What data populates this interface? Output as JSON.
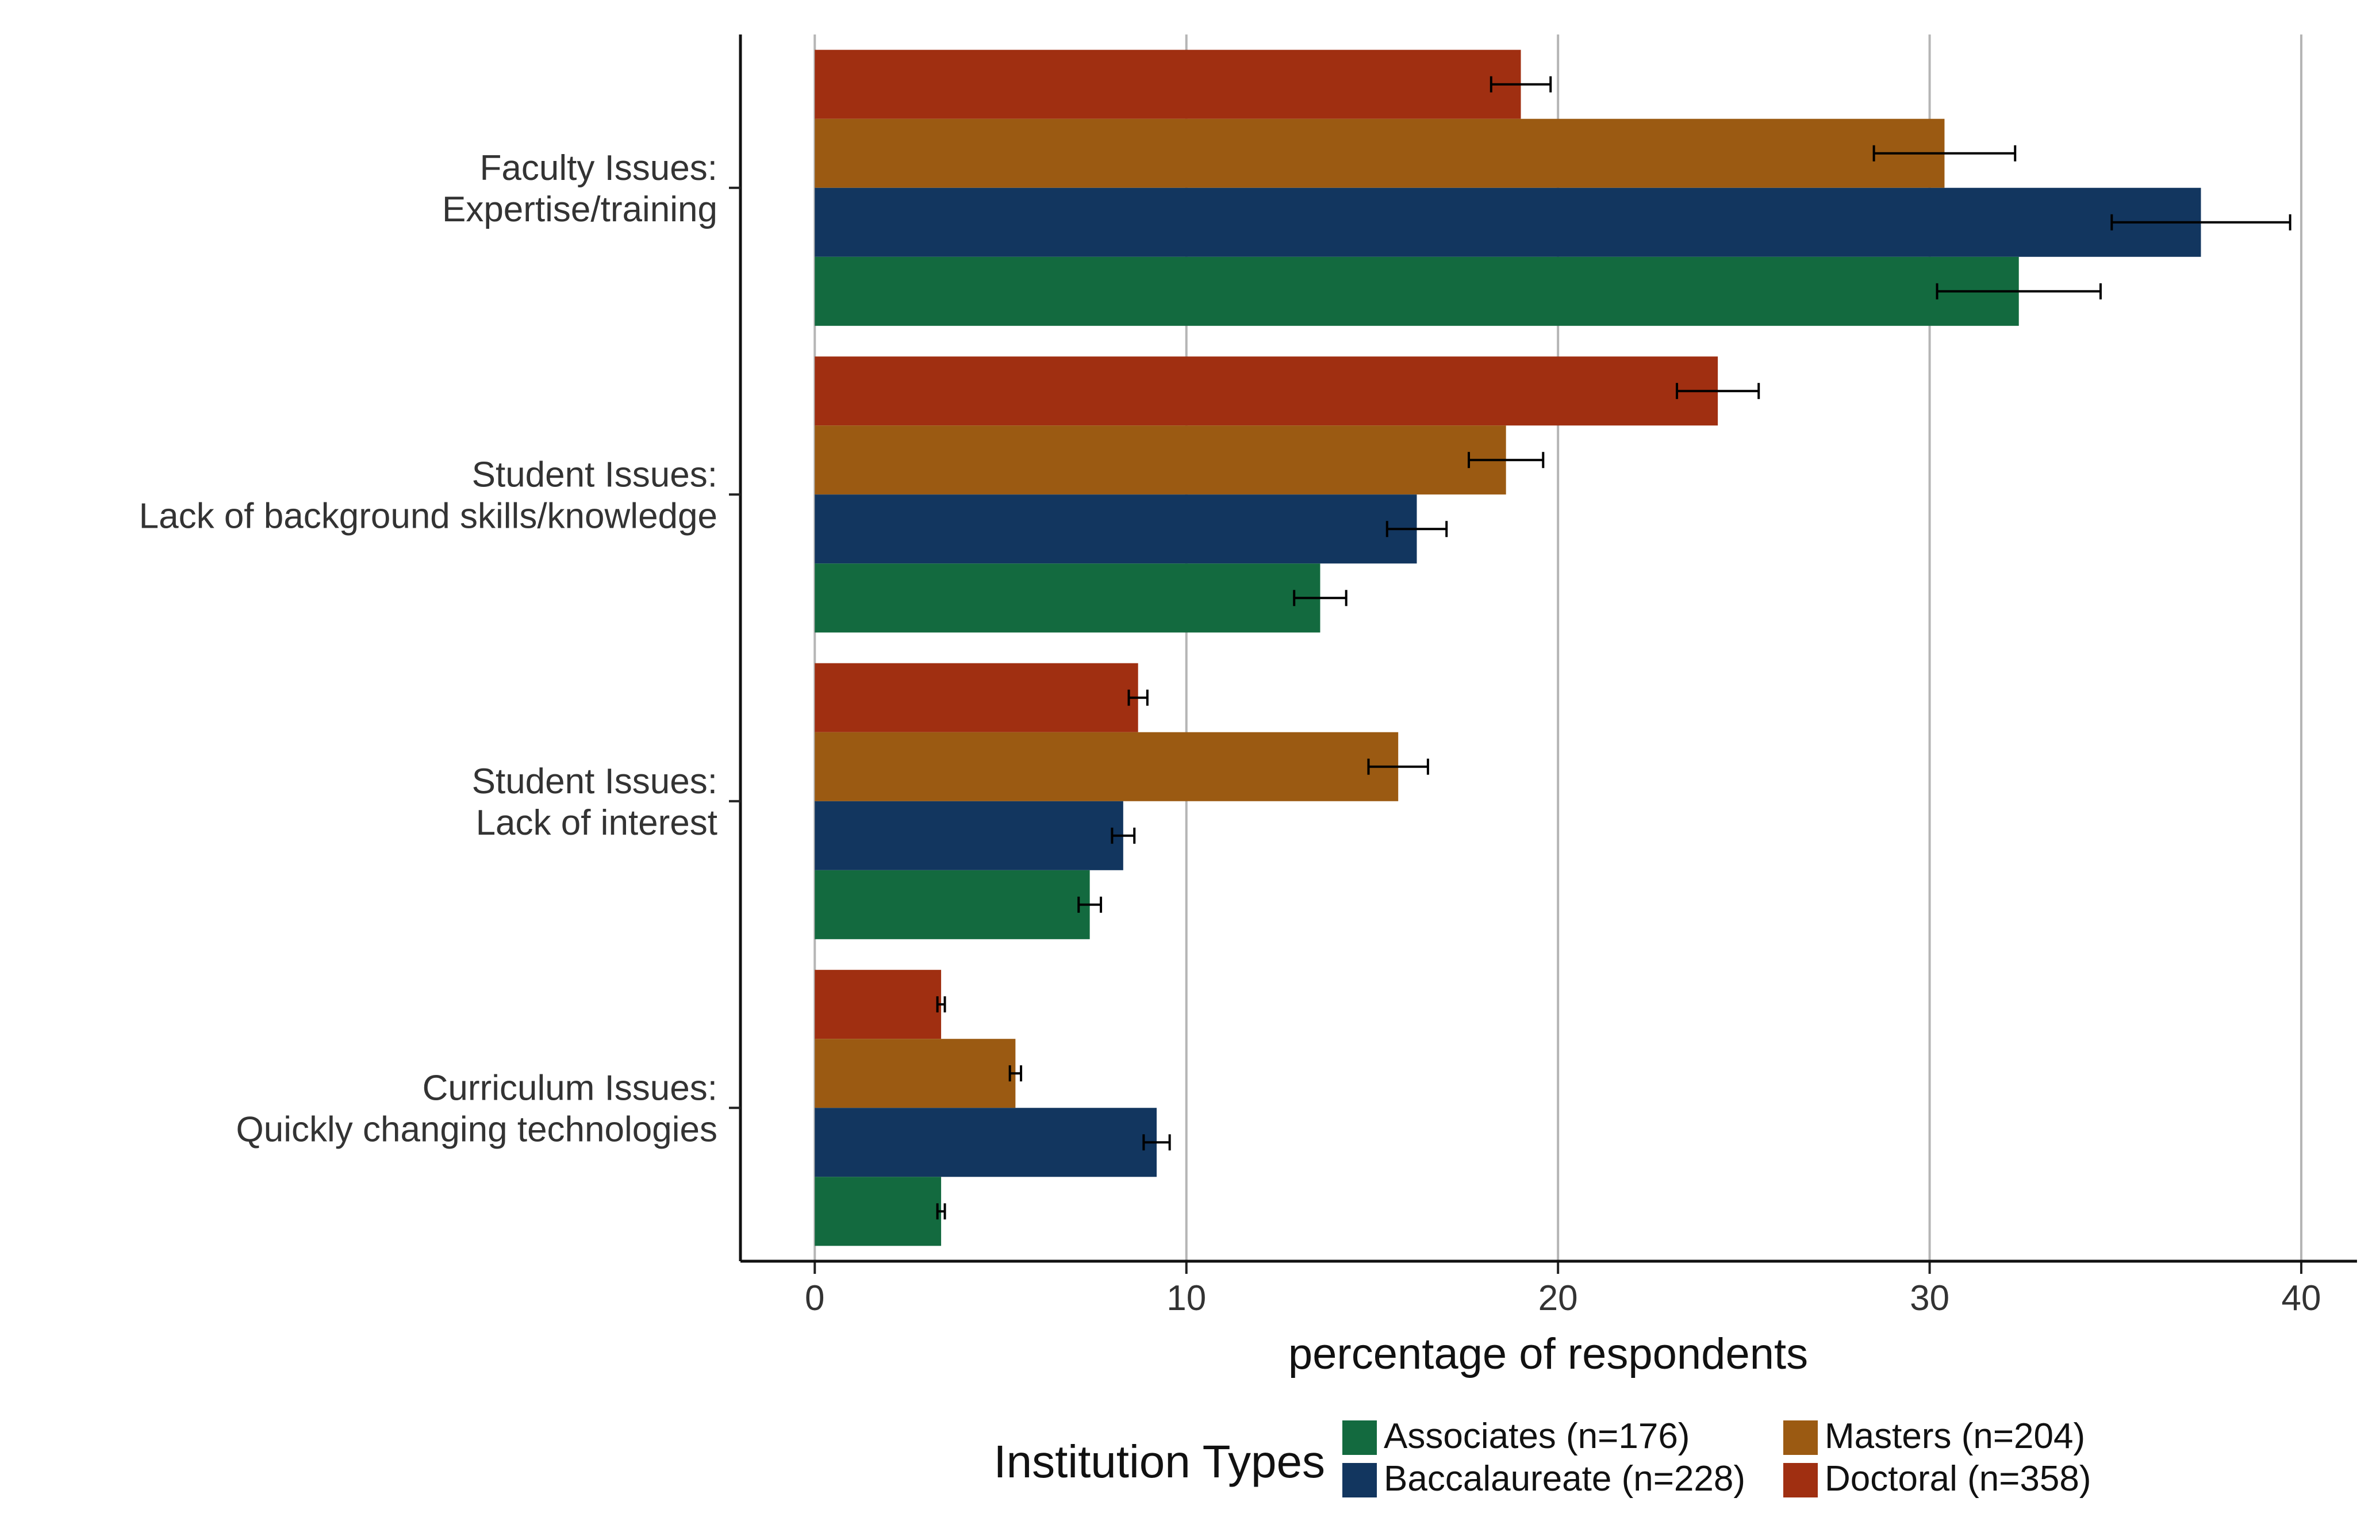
{
  "chart_data": {
    "type": "bar",
    "orientation": "horizontal",
    "categories": [
      {
        "line1": "Faculty Issues:",
        "line2": "Expertise/training"
      },
      {
        "line1": "Student Issues:",
        "line2": "Lack of background skills/knowledge"
      },
      {
        "line1": "Student Issues:",
        "line2": "Lack of interest"
      },
      {
        "line1": "Curriculum Issues:",
        "line2": "Quickly changing technologies"
      }
    ],
    "series": [
      {
        "name": "Doctoral (n=358)",
        "color": "#a02f11",
        "values": [
          19.0,
          24.3,
          8.7,
          3.4
        ],
        "errors": [
          0.8,
          1.1,
          0.25,
          0.1
        ]
      },
      {
        "name": "Masters (n=204)",
        "color": "#9b5a12",
        "values": [
          30.4,
          18.6,
          15.7,
          5.4
        ],
        "errors": [
          1.9,
          1.0,
          0.8,
          0.15
        ]
      },
      {
        "name": "Baccalaureate (n=228)",
        "color": "#12365f",
        "values": [
          37.3,
          16.2,
          8.3,
          9.2
        ],
        "errors": [
          2.4,
          0.8,
          0.3,
          0.35
        ]
      },
      {
        "name": "Associates (n=176)",
        "color": "#136a3f",
        "values": [
          32.4,
          13.6,
          7.4,
          3.4
        ],
        "errors": [
          2.2,
          0.7,
          0.3,
          0.1
        ]
      }
    ],
    "xlabel": "percentage of respondents",
    "xlim": [
      -2,
      41.5
    ],
    "xticks": [
      0,
      10,
      20,
      30,
      40
    ],
    "grid": "vertical major",
    "legend": {
      "title": "Institution Types",
      "placement": "bottom",
      "items": [
        {
          "label": "Associates (n=176)",
          "color": "#136a3f"
        },
        {
          "label": "Masters (n=204)",
          "color": "#9b5a12"
        },
        {
          "label": "Baccalaureate (n=228)",
          "color": "#12365f"
        },
        {
          "label": "Doctoral (n=358)",
          "color": "#a02f11"
        }
      ]
    }
  }
}
